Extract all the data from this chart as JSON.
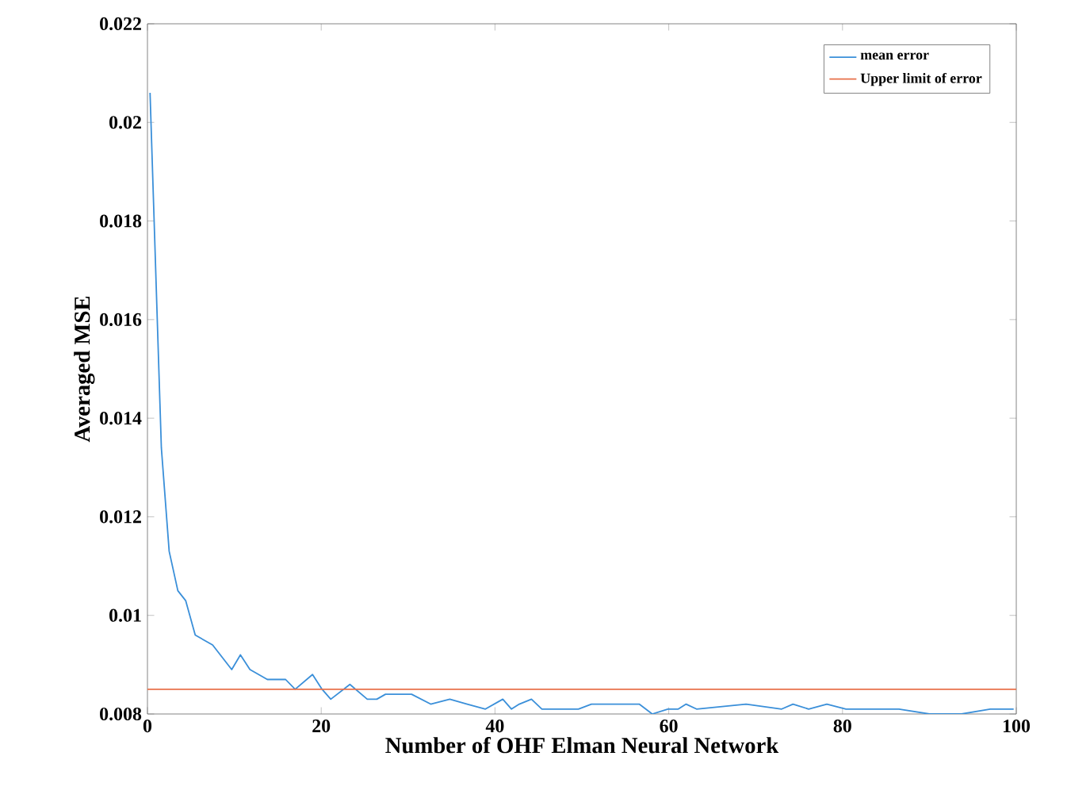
{
  "chart_data": {
    "type": "line",
    "xlabel": "Number of OHF Elman Neural Network",
    "ylabel": "Averaged MSE",
    "xlim": [
      0,
      100
    ],
    "ylim": [
      0.008,
      0.022
    ],
    "xticks": [
      0,
      20,
      40,
      60,
      80,
      100
    ],
    "yticks": [
      0.008,
      0.01,
      0.012,
      0.014,
      0.016,
      0.018,
      0.02,
      0.022
    ],
    "legend": "top right",
    "grid": false,
    "series": [
      {
        "name": "mean error",
        "color": "#3a8fd9",
        "x": [
          0.3,
          1.6,
          2.5,
          3.5,
          4.4,
          5.5,
          7.5,
          9.7,
          10.7,
          11.8,
          13.8,
          15.9,
          17,
          19,
          20.1,
          21.1,
          23.3,
          25.3,
          26.4,
          27.4,
          30.4,
          32.6,
          34.8,
          36.8,
          38.9,
          40.9,
          41.9,
          42.8,
          44.2,
          45.4,
          49.6,
          51.1,
          53.8,
          56.6,
          58.1,
          59.9,
          61.1,
          62,
          63.2,
          68.9,
          73,
          74.3,
          76.1,
          78.2,
          80.4,
          86.5,
          90,
          93.7,
          97,
          99.7
        ],
        "values": [
          0.0206,
          0.0134,
          0.0113,
          0.0105,
          0.0103,
          0.0096,
          0.0094,
          0.0089,
          0.0092,
          0.0089,
          0.0087,
          0.0087,
          0.0085,
          0.0088,
          0.0085,
          0.0083,
          0.0086,
          0.0083,
          0.0083,
          0.0084,
          0.0084,
          0.0082,
          0.0083,
          0.0082,
          0.0081,
          0.0083,
          0.0081,
          0.0082,
          0.0083,
          0.0081,
          0.0081,
          0.0082,
          0.0082,
          0.0082,
          0.008,
          0.0081,
          0.0081,
          0.0082,
          0.0081,
          0.0082,
          0.0081,
          0.0082,
          0.0081,
          0.0082,
          0.0081,
          0.0081,
          0.008,
          0.008,
          0.0081,
          0.0081
        ]
      },
      {
        "name": "Upper limit of error",
        "color": "#e8704a",
        "x": [
          0,
          100
        ],
        "values": [
          0.0085,
          0.0085
        ]
      }
    ]
  }
}
